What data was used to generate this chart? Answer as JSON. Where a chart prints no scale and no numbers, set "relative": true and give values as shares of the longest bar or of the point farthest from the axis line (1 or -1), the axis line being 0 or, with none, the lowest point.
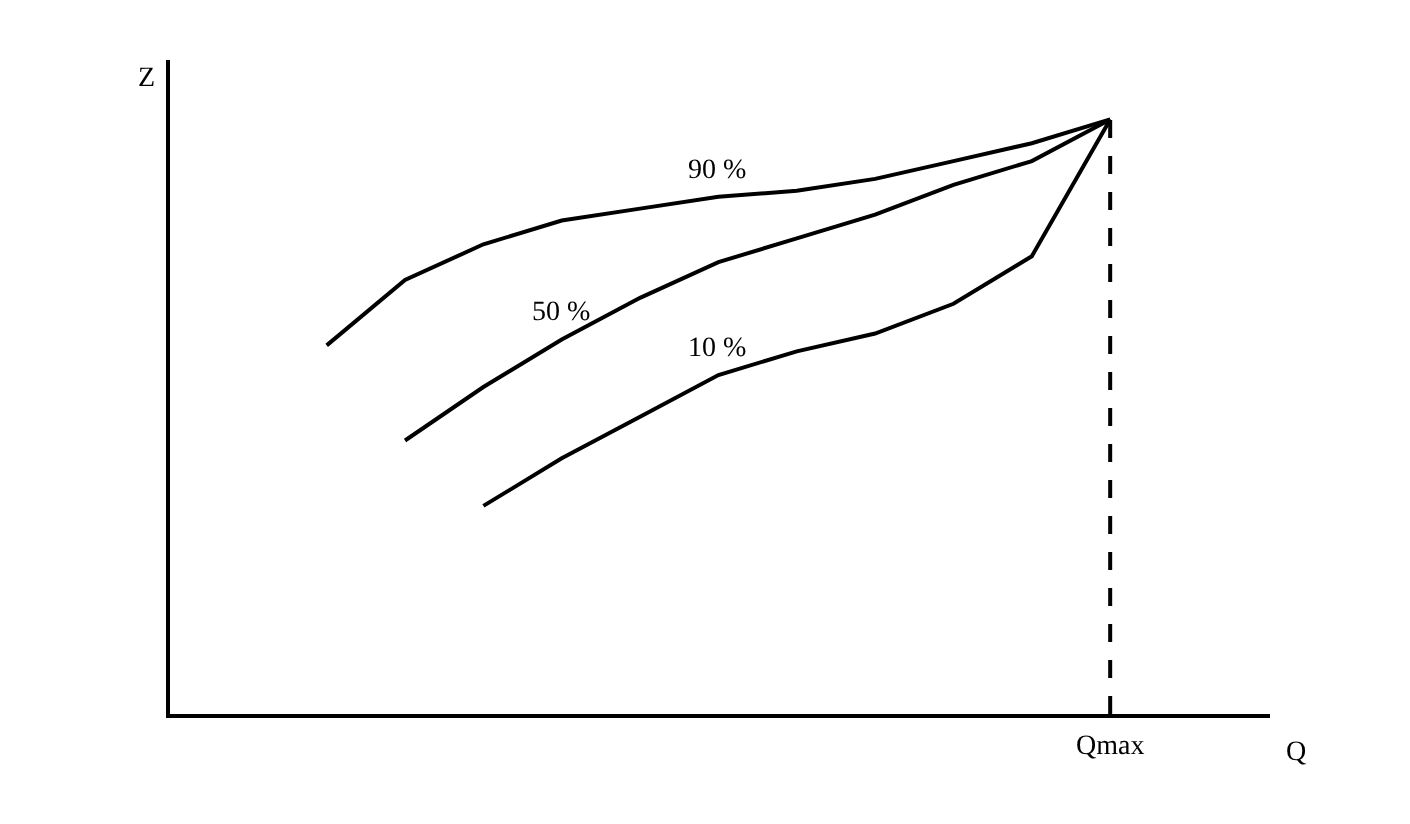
{
  "chart_data": {
    "type": "line",
    "relative": true,
    "xlabel": "Q",
    "ylabel": "Z",
    "grid": false,
    "legend": false,
    "marker": "none",
    "line_style": "solid",
    "categories": [
      null,
      null,
      null,
      null,
      null,
      null,
      null,
      null,
      null,
      null,
      null,
      null,
      null
    ],
    "annotations": [
      "Qmax"
    ],
    "series": [
      {
        "name": "90 %",
        "color": "#000000",
        "values": [
          null,
          null,
          0.62,
          0.73,
          0.79,
          0.83,
          0.85,
          0.87,
          0.88,
          0.9,
          0.93,
          0.96,
          1
        ]
      },
      {
        "name": "50 %",
        "color": "#000000",
        "values": [
          null,
          null,
          null,
          0.46,
          0.55,
          0.63,
          0.7,
          0.76,
          0.8,
          0.84,
          0.89,
          0.93,
          1
        ]
      },
      {
        "name": "10 %",
        "color": "#000000",
        "values": [
          null,
          null,
          null,
          null,
          0.35,
          0.43,
          0.5,
          0.57,
          0.61,
          0.64,
          0.69,
          0.77,
          1
        ]
      }
    ]
  }
}
